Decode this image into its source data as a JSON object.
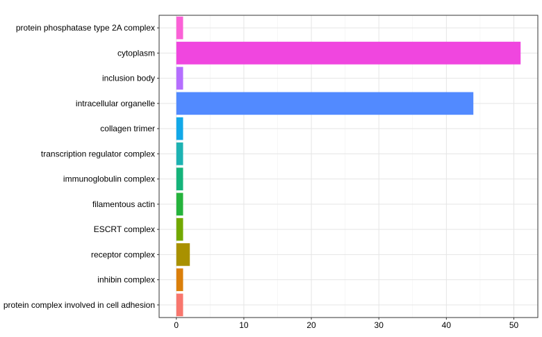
{
  "chart_data": {
    "type": "bar",
    "orientation": "horizontal",
    "categories": [
      "protein phosphatase type 2A complex",
      "cytoplasm",
      "inclusion body",
      "intracellular organelle",
      "collagen trimer",
      "transcription regulator complex",
      "immunoglobulin complex",
      "filamentous actin",
      "ESCRT complex",
      "receptor complex",
      "inhibin complex",
      "protein complex involved in cell adhesion"
    ],
    "values": [
      1,
      51,
      1,
      44,
      1,
      1,
      1,
      1,
      1,
      2,
      1,
      1
    ],
    "colors": [
      "#FB61D7",
      "#F046DF",
      "#B56EFF",
      "#528AFF",
      "#12A8E8",
      "#1DB2B2",
      "#15B37A",
      "#25B33C",
      "#72A800",
      "#A99100",
      "#DB7F0A",
      "#F8766D"
    ],
    "xticks": [
      0,
      10,
      20,
      30,
      40,
      50
    ],
    "xlim": [
      -2.55,
      53.55
    ],
    "grid": true,
    "legend": "none"
  }
}
